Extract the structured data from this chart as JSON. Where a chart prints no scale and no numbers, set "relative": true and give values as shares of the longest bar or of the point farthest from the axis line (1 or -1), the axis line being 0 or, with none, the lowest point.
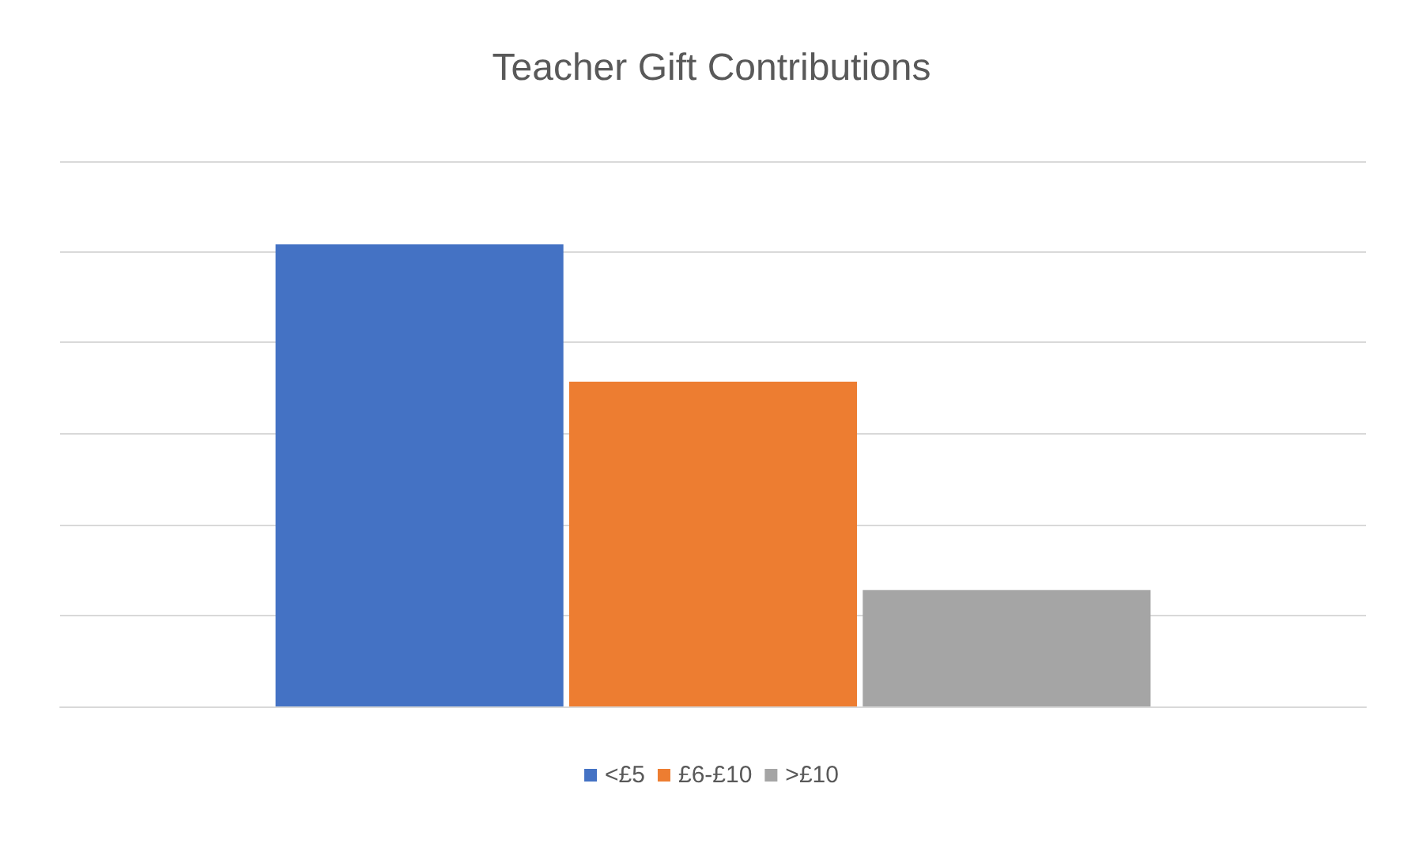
{
  "chart_data": {
    "type": "bar",
    "title": "Teacher Gift Contributions",
    "relative": true,
    "categories": [
      null
    ],
    "series": [
      {
        "name": "<£5",
        "color": "#4472c4",
        "values": [
          1
        ]
      },
      {
        "name": "£6-£10",
        "color": "#ed7d31",
        "values": [
          0.703
        ]
      },
      {
        "name": ">£10",
        "color": "#a5a5a5",
        "values": [
          0.252
        ]
      }
    ],
    "grid": "y",
    "legend": "bottom"
  }
}
